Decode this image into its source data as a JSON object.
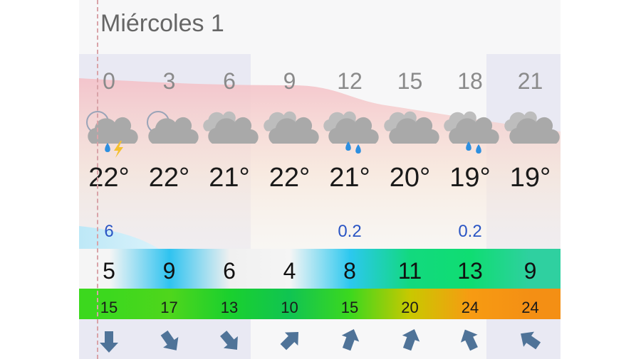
{
  "day": {
    "title": "Miércoles 1"
  },
  "colors": {
    "night_shade": "#e9e9f3",
    "temp_band": "#f6c9ce",
    "rain_band": "#bde8f7",
    "precip_text": "#2a55c4",
    "arrow": "#4f7398",
    "cloud": "#a9a9a9",
    "rain_drop": "#2d8fe0",
    "lightning": "#f5c030"
  },
  "forecast": [
    {
      "hour": "0",
      "icon": "night-cloud-thunder-rain-icon",
      "temp": "22°",
      "precip": "6",
      "wind": "5",
      "wind_color": "#f5f5f5",
      "gust": "15",
      "gust_color": "#3cd81e",
      "wind_dir_deg": 180
    },
    {
      "hour": "3",
      "icon": "night-cloud-icon",
      "temp": "22°",
      "precip": "",
      "wind": "9",
      "wind_color": "#2fc3f0",
      "gust": "17",
      "gust_color": "#4fd61c",
      "wind_dir_deg": 145
    },
    {
      "hour": "6",
      "icon": "cloudy-icon",
      "temp": "21°",
      "precip": "",
      "wind": "6",
      "wind_color": "#f0f0f0",
      "gust": "13",
      "gust_color": "#1ad02e",
      "wind_dir_deg": 140
    },
    {
      "hour": "9",
      "icon": "cloudy-icon",
      "temp": "22°",
      "precip": "",
      "wind": "4",
      "wind_color": "#f5f5f5",
      "gust": "10",
      "gust_color": "#10c452",
      "wind_dir_deg": 45
    },
    {
      "hour": "12",
      "icon": "cloudy-rain-icon",
      "temp": "21°",
      "precip": "0.2",
      "wind": "8",
      "wind_color": "#2cc8ef",
      "gust": "15",
      "gust_color": "#3cd81e",
      "wind_dir_deg": 20
    },
    {
      "hour": "15",
      "icon": "cloudy-icon",
      "temp": "20°",
      "precip": "",
      "wind": "11",
      "wind_color": "#12d97e",
      "gust": "20",
      "gust_color": "#c9c800",
      "wind_dir_deg": 20
    },
    {
      "hour": "18",
      "icon": "cloudy-rain-icon",
      "temp": "19°",
      "precip": "0.2",
      "wind": "13",
      "wind_color": "#0fdd72",
      "gust": "24",
      "gust_color": "#f79b12",
      "wind_dir_deg": 335
    },
    {
      "hour": "21",
      "icon": "cloudy-icon",
      "temp": "19°",
      "precip": "",
      "wind": "9",
      "wind_color": "#2fd0a0",
      "gust": "24",
      "gust_color": "#f48f14",
      "wind_dir_deg": 305
    }
  ]
}
